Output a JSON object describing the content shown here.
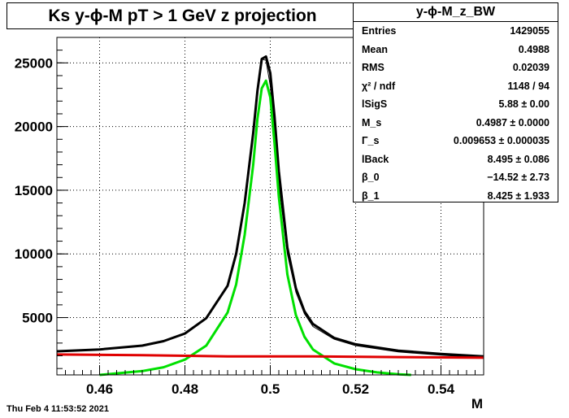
{
  "title": "Ks y-ϕ-M pT > 1 GeV z projection",
  "stats": {
    "name": "y-ϕ-M_z_BW",
    "rows": [
      {
        "label": "Entries",
        "value": "1429055"
      },
      {
        "label": "Mean",
        "value": "0.4988"
      },
      {
        "label": "RMS",
        "value": "0.02039"
      },
      {
        "label": "χ² / ndf",
        "value": "1148 / 94"
      },
      {
        "label": "lSigS",
        "value": "5.88 ± 0.00"
      },
      {
        "label": "M_s",
        "value": "0.4987 ± 0.0000"
      },
      {
        "label": "Γ_s",
        "value": "0.009653 ± 0.000035"
      },
      {
        "label": "lBack",
        "value": "8.495 ± 0.086"
      },
      {
        "label": "β_0",
        "value": "−14.52 ± 2.73"
      },
      {
        "label": "β_1",
        "value": "8.425 ± 1.933"
      }
    ]
  },
  "date": "Thu Feb  4 11:53:52 2021",
  "chart_data": {
    "type": "line",
    "xlabel": "M",
    "ylabel": "",
    "xlim": [
      0.45,
      0.55
    ],
    "ylim": [
      500,
      27000
    ],
    "grid": true,
    "xticks": [
      "0.46",
      "0.48",
      "0.5",
      "0.52",
      "0.54"
    ],
    "yticks": [
      "5000",
      "10000",
      "15000",
      "20000",
      "25000"
    ],
    "series": [
      {
        "role": "histogram",
        "color": "#000000",
        "x": [
          0.45,
          0.46,
          0.47,
          0.475,
          0.48,
          0.485,
          0.49,
          0.492,
          0.494,
          0.496,
          0.497,
          0.498,
          0.499,
          0.5,
          0.501,
          0.502,
          0.504,
          0.506,
          0.508,
          0.51,
          0.515,
          0.52,
          0.53,
          0.54,
          0.55
        ],
        "y": [
          2300,
          2500,
          2850,
          3200,
          3800,
          5000,
          7600,
          10200,
          14200,
          19600,
          23000,
          25300,
          25200,
          23200,
          19700,
          15500,
          10000,
          7000,
          5300,
          4300,
          3300,
          2800,
          2300,
          2050,
          1850
        ]
      },
      {
        "role": "total fit",
        "color": "#000000",
        "x": [
          0.45,
          0.46,
          0.47,
          0.475,
          0.48,
          0.485,
          0.49,
          0.492,
          0.494,
          0.496,
          0.497,
          0.498,
          0.499,
          0.5,
          0.501,
          0.502,
          0.504,
          0.506,
          0.508,
          0.51,
          0.515,
          0.52,
          0.53,
          0.54,
          0.55
        ],
        "y": [
          2350,
          2500,
          2800,
          3150,
          3750,
          4950,
          7500,
          10000,
          14000,
          19500,
          22800,
          25300,
          25500,
          24200,
          20800,
          16500,
          10500,
          7300,
          5500,
          4500,
          3400,
          2900,
          2400,
          2150,
          1950
        ]
      },
      {
        "role": "signal",
        "color": "#00e000",
        "x": [
          0.46,
          0.47,
          0.475,
          0.48,
          0.485,
          0.49,
          0.492,
          0.494,
          0.496,
          0.497,
          0.498,
          0.499,
          0.5,
          0.501,
          0.502,
          0.504,
          0.506,
          0.508,
          0.51,
          0.515,
          0.52,
          0.525,
          0.53,
          0.533
        ],
        "y": [
          500,
          800,
          1100,
          1700,
          2800,
          5400,
          7600,
          11500,
          17000,
          20600,
          23000,
          23600,
          22300,
          18700,
          14500,
          8400,
          5200,
          3500,
          2500,
          1400,
          950,
          700,
          550,
          500
        ]
      },
      {
        "role": "background",
        "color": "#e00000",
        "x": [
          0.45,
          0.47,
          0.49,
          0.5,
          0.51,
          0.53,
          0.55
        ],
        "y": [
          2100,
          2050,
          1950,
          1950,
          1950,
          1900,
          1850
        ]
      }
    ]
  }
}
